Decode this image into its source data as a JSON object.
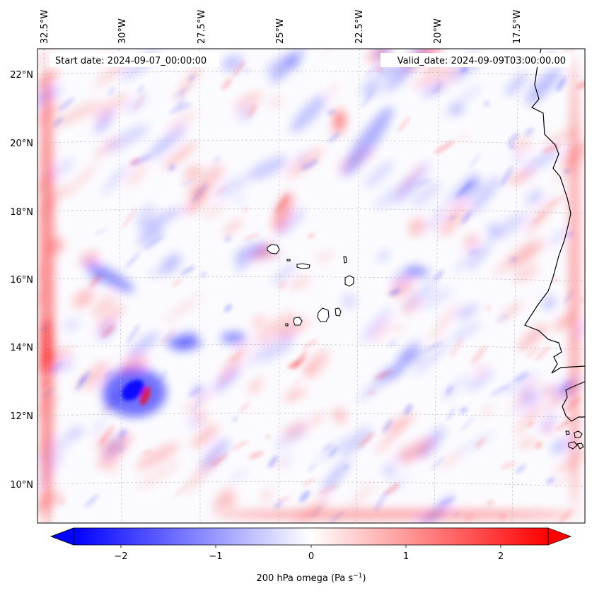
{
  "map": {
    "start_date": "Start date: 2024-09-07_00:00:00",
    "valid_date": "Valid_date: 2024-09-09T03:00:00.00",
    "lon_labels": [
      "32.5°W",
      "30°W",
      "27.5°W",
      "25°W",
      "22.5°W",
      "20°W",
      "17.5°W"
    ],
    "lat_labels": [
      "22°N",
      "20°N",
      "18°N",
      "16°N",
      "14°N",
      "12°N",
      "10°N"
    ],
    "colormap": {
      "negative": "#0000ff",
      "zero": "#ffffff",
      "positive": "#ff0000"
    },
    "coastline_color": "#000000"
  },
  "colorbar": {
    "ticks": [
      "−2",
      "−1",
      "0",
      "1",
      "2"
    ],
    "label": "200 hPa omega (Pa s",
    "label_sup": "−1",
    "label_end": ")"
  }
}
